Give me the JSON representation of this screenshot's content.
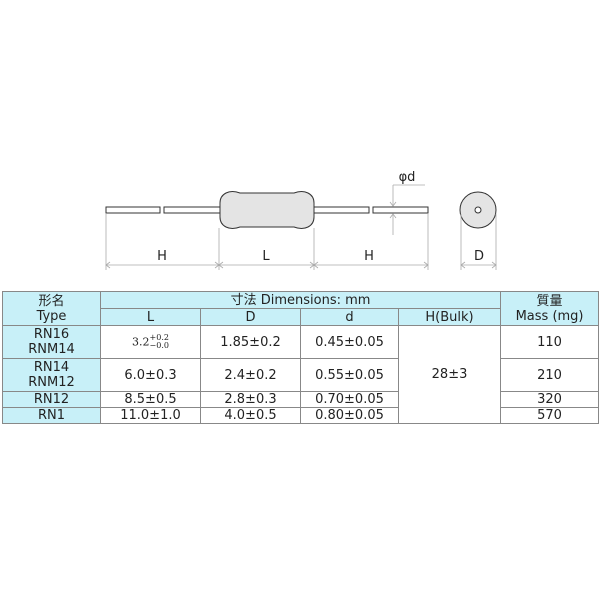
{
  "diagram": {
    "labels": {
      "h_left": "H",
      "l": "L",
      "h_right": "H",
      "d_dia": "D",
      "phi_d": "φd"
    }
  },
  "table": {
    "header": {
      "type_jp": "形名",
      "type_en": "Type",
      "dimensions": "寸法 Dimensions: mm",
      "mass_jp": "質量",
      "mass_en": "Mass (mg)",
      "cols": [
        "L",
        "D",
        "d",
        "H(Bulk)"
      ]
    },
    "h_bulk": "28±3",
    "rows": [
      {
        "type": [
          "RN16",
          "RNM14"
        ],
        "L": "3.2",
        "L_plus": "+0.2",
        "L_minus": "−0.0",
        "D": "1.85±0.2",
        "d": "0.45±0.05",
        "mass": "110"
      },
      {
        "type": [
          "RN14",
          "RNM12"
        ],
        "L": "6.0±0.3",
        "D": "2.4±0.2",
        "d": "0.55±0.05",
        "mass": "210"
      },
      {
        "type": [
          "RN12"
        ],
        "L": "8.5±0.5",
        "D": "2.8±0.3",
        "d": "0.70±0.05",
        "mass": "320"
      },
      {
        "type": [
          "RN1"
        ],
        "L": "11.0±1.0",
        "D": "4.0±0.5",
        "d": "0.80±0.05",
        "mass": "570"
      }
    ],
    "colors": {
      "header_bg": "#c8f0f8"
    }
  }
}
